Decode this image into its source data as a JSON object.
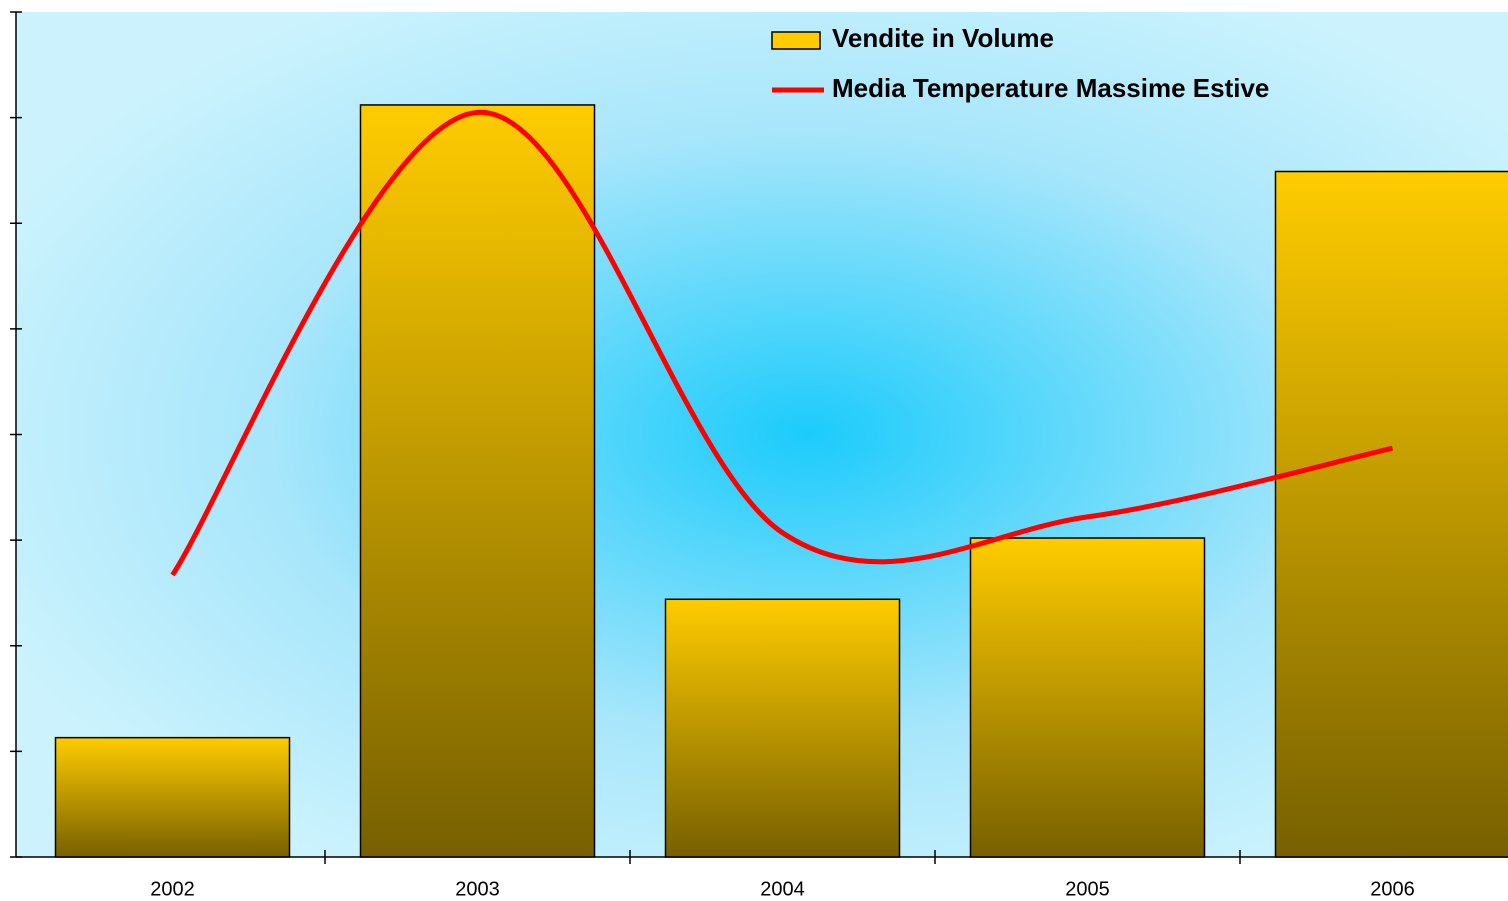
{
  "chart_data": {
    "type": "bar",
    "categories": [
      "2002",
      "2003",
      "2004",
      "2005",
      "2006"
    ],
    "series": [
      {
        "name": "Vendite in Volume",
        "type": "bar",
        "color": "#ffcc00",
        "values": [
          1.13,
          7.12,
          2.44,
          3.02,
          6.49
        ]
      },
      {
        "name": "Media Temperature Massime Estive",
        "type": "line",
        "color": "#ff0000",
        "values": [
          2.67,
          7.05,
          3.07,
          3.22,
          3.87
        ]
      }
    ],
    "ylim": [
      0,
      8
    ],
    "yticks": [
      0,
      1,
      2,
      3,
      4,
      5,
      6,
      7,
      8
    ],
    "legend": "top"
  }
}
